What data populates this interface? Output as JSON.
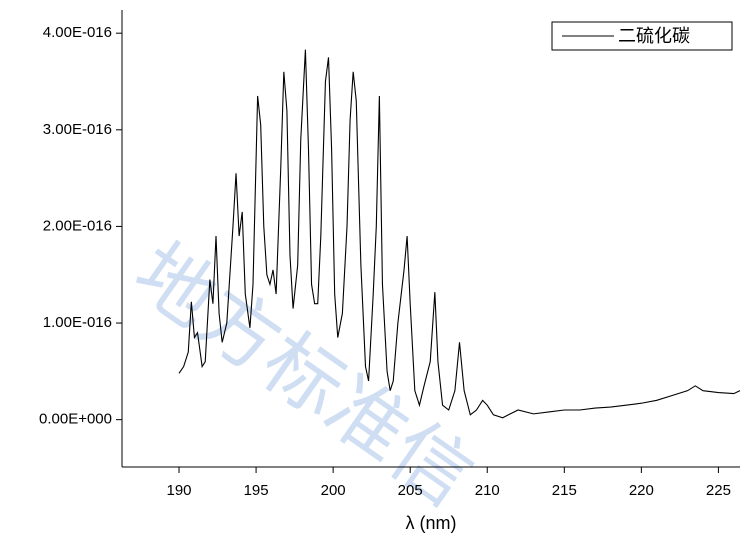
{
  "chart_data": {
    "type": "line",
    "x_label": "λ (nm)",
    "watermark": "地方标准信",
    "legend": "top-right",
    "xlim": [
      186.3,
      226.4
    ],
    "xticks": [
      190,
      195,
      200,
      205,
      210,
      215,
      220,
      225
    ],
    "ylim": [
      -4.9e-17,
      4.24e-16
    ],
    "yticks": [
      {
        "value": 0,
        "label": "0.00E+000"
      },
      {
        "value": 1e-16,
        "label": "1.00E-016"
      },
      {
        "value": 2e-16,
        "label": "2.00E-016"
      },
      {
        "value": 3e-16,
        "label": "3.00E-016"
      },
      {
        "value": 4e-16,
        "label": "4.00E-016"
      }
    ],
    "x": [
      190,
      190.3,
      190.6,
      190.8,
      191.0,
      191.2,
      191.5,
      191.7,
      192.0,
      192.2,
      192.4,
      192.6,
      192.8,
      193.1,
      193.5,
      193.7,
      193.9,
      194.1,
      194.3,
      194.6,
      194.8,
      195.1,
      195.3,
      195.5,
      195.7,
      195.9,
      196.1,
      196.3,
      196.6,
      196.8,
      197.0,
      197.2,
      197.4,
      197.7,
      197.9,
      198.2,
      198.4,
      198.6,
      198.8,
      199.0,
      199.2,
      199.5,
      199.7,
      199.9,
      200.1,
      200.3,
      200.6,
      200.9,
      201.1,
      201.3,
      201.5,
      201.8,
      202.1,
      202.3,
      202.6,
      202.8,
      203.0,
      203.2,
      203.5,
      203.7,
      203.9,
      204.2,
      204.6,
      204.8,
      205.0,
      205.3,
      205.6,
      205.9,
      206.3,
      206.6,
      206.8,
      207.1,
      207.5,
      207.9,
      208.2,
      208.5,
      208.9,
      209.3,
      209.7,
      210.0,
      210.4,
      211,
      212,
      213,
      214,
      215,
      216,
      217,
      218,
      219,
      220,
      221,
      222,
      223,
      223.5,
      224,
      225,
      226,
      226.4
    ],
    "series": [
      {
        "name": "二硫化碳",
        "color": "#000000",
        "values": [
          4.8e-17,
          5.5e-17,
          7e-17,
          1.22e-16,
          8.5e-17,
          9e-17,
          5.5e-17,
          6e-17,
          1.45e-16,
          1.2e-16,
          1.9e-16,
          1.1e-16,
          8e-17,
          1e-16,
          2e-16,
          2.55e-16,
          1.9e-16,
          2.15e-16,
          1.3e-16,
          9.5e-17,
          1.4e-16,
          3.35e-16,
          3.05e-16,
          2e-16,
          1.5e-16,
          1.4e-16,
          1.55e-16,
          1.3e-16,
          2.6e-16,
          3.6e-16,
          3.2e-16,
          1.7e-16,
          1.15e-16,
          1.6e-16,
          2.9e-16,
          3.83e-16,
          2.8e-16,
          1.4e-16,
          1.2e-16,
          1.2e-16,
          1.9e-16,
          3.5e-16,
          3.75e-16,
          2.8e-16,
          1.3e-16,
          8.5e-17,
          1.1e-16,
          2e-16,
          3.1e-16,
          3.6e-16,
          3.3e-16,
          1.6e-16,
          5.5e-17,
          4e-17,
          1.3e-16,
          2e-16,
          3.35e-16,
          1.4e-16,
          5e-17,
          3e-17,
          4e-17,
          1e-16,
          1.55e-16,
          1.9e-16,
          1.2e-16,
          3e-17,
          1.5e-17,
          3.5e-17,
          6e-17,
          1.32e-16,
          6e-17,
          1.5e-17,
          1e-17,
          3e-17,
          8e-17,
          3e-17,
          5e-18,
          1e-17,
          2e-17,
          1.5e-17,
          5e-18,
          2e-18,
          1e-17,
          6e-18,
          8e-18,
          1e-17,
          1e-17,
          1.2e-17,
          1.3e-17,
          1.5e-17,
          1.7e-17,
          2e-17,
          2.5e-17,
          3e-17,
          3.5e-17,
          3e-17,
          2.8e-17,
          2.7e-17,
          3e-17
        ]
      }
    ]
  }
}
